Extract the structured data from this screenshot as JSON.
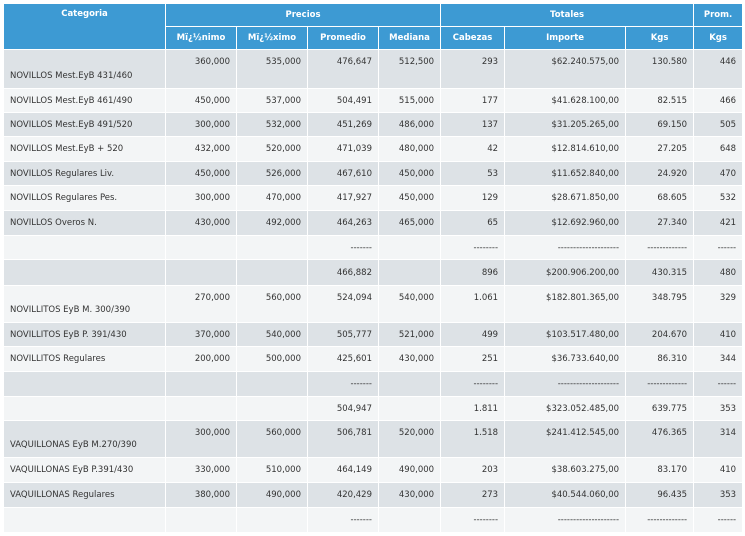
{
  "table": {
    "header": {
      "groups": [
        "Categoria",
        "Precios",
        "Totales",
        "Prom."
      ],
      "columns": [
        "Mï¿½nimo",
        "Mï¿½ximo",
        "Promedio",
        "Mediana",
        "Cabezas",
        "Importe",
        "Kgs",
        "Kgs"
      ]
    },
    "rows": [
      [
        "NOVILLOS Mest.EyB 431/460",
        "360,000",
        "535,000",
        "476,647",
        "512,500",
        "293",
        "$62.240.575,00",
        "130.580",
        "446"
      ],
      [
        "NOVILLOS Mest.EyB 461/490",
        "450,000",
        "537,000",
        "504,491",
        "515,000",
        "177",
        "$41.628.100,00",
        "82.515",
        "466"
      ],
      [
        "NOVILLOS Mest.EyB 491/520",
        "300,000",
        "532,000",
        "451,269",
        "486,000",
        "137",
        "$31.205.265,00",
        "69.150",
        "505"
      ],
      [
        "NOVILLOS Mest.EyB + 520",
        "432,000",
        "520,000",
        "471,039",
        "480,000",
        "42",
        "$12.814.610,00",
        "27.205",
        "648"
      ],
      [
        "NOVILLOS Regulares Liv.",
        "450,000",
        "526,000",
        "467,610",
        "450,000",
        "53",
        "$11.652.840,00",
        "24.920",
        "470"
      ],
      [
        "NOVILLOS Regulares Pes.",
        "300,000",
        "470,000",
        "417,927",
        "450,000",
        "129",
        "$28.671.850,00",
        "68.605",
        "532"
      ],
      [
        "NOVILLOS Overos N.",
        "430,000",
        "492,000",
        "464,263",
        "465,000",
        "65",
        "$12.692.960,00",
        "27.340",
        "421"
      ],
      [
        null,
        null,
        null,
        "-------",
        null,
        "--------",
        "--------------------",
        "-------------",
        "------"
      ],
      [
        null,
        null,
        null,
        "466,882",
        null,
        "896",
        "$200.906.200,00",
        "430.315",
        "480"
      ],
      [
        "NOVILLITOS EyB M. 300/390",
        "270,000",
        "560,000",
        "524,094",
        "540,000",
        "1.061",
        "$182.801.365,00",
        "348.795",
        "329"
      ],
      [
        "NOVILLITOS EyB P. 391/430",
        "370,000",
        "540,000",
        "505,777",
        "521,000",
        "499",
        "$103.517.480,00",
        "204.670",
        "410"
      ],
      [
        "NOVILLITOS Regulares",
        "200,000",
        "500,000",
        "425,601",
        "430,000",
        "251",
        "$36.733.640,00",
        "86.310",
        "344"
      ],
      [
        null,
        null,
        null,
        "-------",
        null,
        "--------",
        "--------------------",
        "-------------",
        "------"
      ],
      [
        null,
        null,
        null,
        "504,947",
        null,
        "1.811",
        "$323.052.485,00",
        "639.775",
        "353"
      ],
      [
        "VAQUILLONAS EyB M.270/390",
        "300,000",
        "560,000",
        "506,781",
        "520,000",
        "1.518",
        "$241.412.545,00",
        "476.365",
        "314"
      ],
      [
        "VAQUILLONAS EyB P.391/430",
        "330,000",
        "510,000",
        "464,149",
        "490,000",
        "203",
        "$38.603.275,00",
        "83.170",
        "410"
      ],
      [
        "VAQUILLONAS Regulares",
        "380,000",
        "490,000",
        "420,429",
        "430,000",
        "273",
        "$40.544.060,00",
        "96.435",
        "353"
      ],
      [
        null,
        null,
        null,
        "-------",
        null,
        "--------",
        "--------------------",
        "-------------",
        "------"
      ]
    ]
  }
}
